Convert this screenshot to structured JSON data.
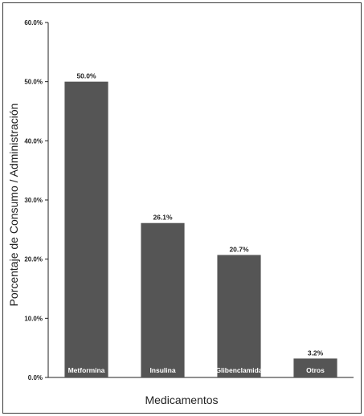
{
  "chart_data": {
    "type": "bar",
    "categories": [
      "Metformina",
      "Insulina",
      "Glibenclamida",
      "Otros"
    ],
    "values": [
      50.0,
      26.1,
      20.7,
      3.2
    ],
    "data_labels": [
      "50.0%",
      "26.1%",
      "20.7%",
      "3.2%"
    ],
    "xlabel": "Medicamentos",
    "ylabel": "Porcentaje de Consumo / Administración",
    "ylim": [
      0,
      60
    ],
    "yticks": [
      0,
      10,
      20,
      30,
      40,
      50,
      60
    ],
    "ytick_labels": [
      "0.0%",
      "10.0%",
      "20.0%",
      "30.0%",
      "40.0%",
      "50.0%",
      "60.0%"
    ],
    "grid": false,
    "legend": "none",
    "bar_color": "#555555",
    "category_label_position": "inside-bar-bottom"
  }
}
